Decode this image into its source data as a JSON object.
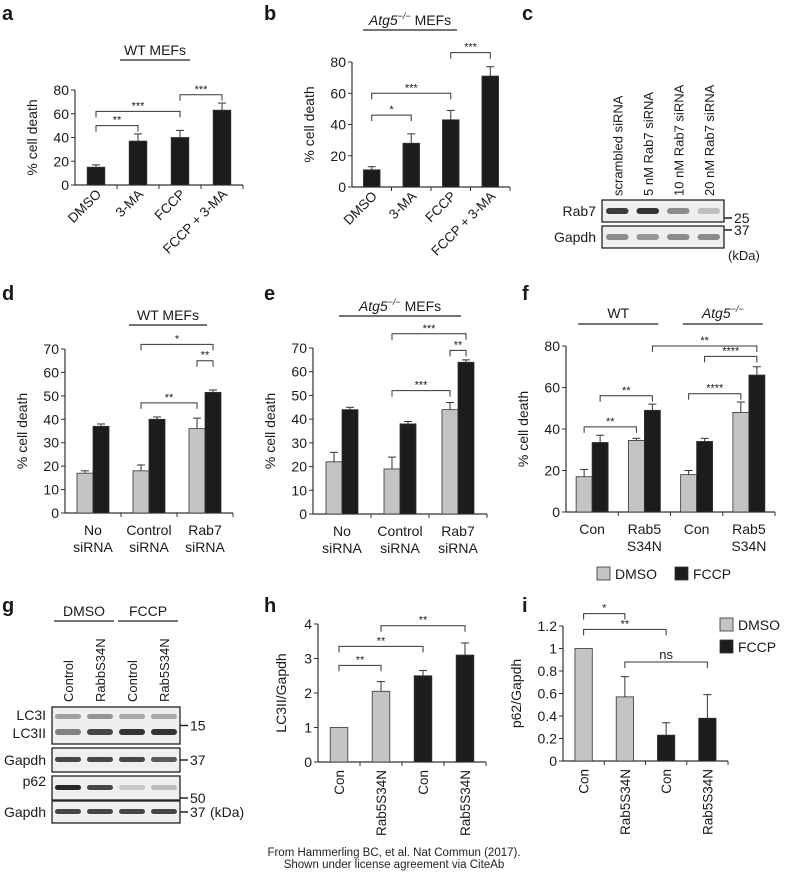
{
  "colors": {
    "dmso": "#c4c4c4",
    "fccp": "#1c1c1c",
    "axis": "#333333"
  },
  "legend": {
    "dmso": "DMSO",
    "fccp": "FCCP"
  },
  "credit": {
    "line1": "From Hammerling BC, et al. Nat Commun (2017).",
    "line2": "Shown under license agreement via CiteAb"
  },
  "blot_c": {
    "panel": "c",
    "lanes": [
      "scrambled siRNA",
      "5 nM Rab7 siRNA",
      "10 nM Rab7 siRNA",
      "20 nM Rab7 siRNA"
    ],
    "rows": [
      {
        "label": "Rab7",
        "marker": "25",
        "intensity": [
          0.85,
          0.9,
          0.45,
          0.2
        ]
      },
      {
        "label": "Gapdh",
        "marker": "37",
        "intensity": [
          0.45,
          0.4,
          0.45,
          0.45
        ]
      }
    ],
    "unit": "(kDa)"
  },
  "blot_g": {
    "panel": "g",
    "groups": [
      "DMSO",
      "FCCP"
    ],
    "lanes": [
      "Control",
      "RabbS34N",
      "Control",
      "Rab5S34N"
    ],
    "rows": [
      {
        "label": "LC3I",
        "label2": "LC3II",
        "marker": "15",
        "intensity": [
          0.35,
          0.4,
          0.3,
          0.3
        ],
        "intensity2": [
          0.5,
          0.8,
          0.9,
          0.9
        ]
      },
      {
        "label": "Gapdh",
        "marker": "37",
        "intensity": [
          0.8,
          0.8,
          0.8,
          0.7
        ]
      },
      {
        "label": "p62",
        "marker": "50",
        "intensity": [
          0.95,
          0.8,
          0.15,
          0.2
        ]
      },
      {
        "label": "Gapdh",
        "marker": "37",
        "unit": "(kDa)",
        "intensity": [
          0.8,
          0.8,
          0.8,
          0.8
        ]
      }
    ]
  },
  "chart_data": [
    {
      "panel": "a",
      "type": "bar",
      "title": "WT MEFs",
      "ylabel": "% cell death",
      "ylim": [
        0,
        80
      ],
      "yticks": [
        "0",
        "20",
        "40",
        "60",
        "80"
      ],
      "categories": [
        "DMSO",
        "3-MA",
        "FCCP",
        "FCCP + 3-MA"
      ],
      "series": [
        {
          "name": "",
          "values": [
            15,
            37,
            40,
            63
          ],
          "errors": [
            2,
            6,
            6,
            6
          ]
        }
      ],
      "annotations": [
        {
          "from": 0,
          "to": 1,
          "label": "**",
          "level": 50
        },
        {
          "from": 0,
          "to": 2,
          "label": "***",
          "level": 62
        },
        {
          "from": 2,
          "to": 3,
          "label": "***",
          "level": 76
        }
      ]
    },
    {
      "panel": "b",
      "type": "bar",
      "title": "Atg5",
      "title_sup": "−/−",
      "title_rest": " MEFs",
      "ylabel": "% cell death",
      "ylim": [
        0,
        80
      ],
      "yticks": [
        "0",
        "20",
        "40",
        "60",
        "80"
      ],
      "categories": [
        "DMSO",
        "3-MA",
        "FCCP",
        "FCCP + 3-MA"
      ],
      "series": [
        {
          "name": "",
          "values": [
            11,
            28,
            43,
            71
          ],
          "errors": [
            2,
            6,
            6,
            6
          ]
        }
      ],
      "annotations": [
        {
          "from": 0,
          "to": 1,
          "label": "*",
          "level": 46
        },
        {
          "from": 0,
          "to": 2,
          "label": "***",
          "level": 60
        },
        {
          "from": 2,
          "to": 3,
          "label": "***",
          "level": 86
        }
      ]
    },
    {
      "panel": "d",
      "type": "bar",
      "title": "WT MEFs",
      "ylabel": "% cell death",
      "ylim": [
        0,
        70
      ],
      "yticks": [
        "0",
        "10",
        "20",
        "30",
        "40",
        "50",
        "60",
        "70"
      ],
      "categories": [
        "No\nsiRNA",
        "Control\nsiRNA",
        "Rab7\nsiRNA"
      ],
      "series": [
        {
          "name": "DMSO",
          "values": [
            17,
            18,
            36
          ],
          "errors": [
            1,
            2.5,
            4.5
          ]
        },
        {
          "name": "FCCP",
          "values": [
            37,
            40,
            51.5
          ],
          "errors": [
            1,
            1,
            1
          ]
        }
      ],
      "annotations": [
        {
          "from": [
            1,
            0
          ],
          "to": [
            2,
            0
          ],
          "label": "**",
          "level": 47
        },
        {
          "from": [
            2,
            0
          ],
          "to": [
            2,
            1
          ],
          "label": "**",
          "level": 65
        },
        {
          "from": [
            1,
            0
          ],
          "to": [
            2,
            1
          ],
          "label": "*",
          "level": 72
        }
      ]
    },
    {
      "panel": "e",
      "type": "bar",
      "title": "Atg5",
      "title_sup": "−/−",
      "title_rest": " MEFs",
      "ylabel": "% cell death",
      "ylim": [
        0,
        70
      ],
      "yticks": [
        "0",
        "10",
        "20",
        "30",
        "40",
        "50",
        "60",
        "70"
      ],
      "categories": [
        "No\nsiRNA",
        "Control\nsiRNA",
        "Rab7\nsiRNA"
      ],
      "series": [
        {
          "name": "DMSO",
          "values": [
            22,
            19,
            44
          ],
          "errors": [
            4,
            5,
            3
          ]
        },
        {
          "name": "FCCP",
          "values": [
            44,
            38,
            64
          ],
          "errors": [
            1,
            1,
            1
          ]
        }
      ],
      "annotations": [
        {
          "from": [
            1,
            0
          ],
          "to": [
            2,
            0
          ],
          "label": "***",
          "level": 52
        },
        {
          "from": [
            2,
            0
          ],
          "to": [
            2,
            1
          ],
          "label": "**",
          "level": 69
        },
        {
          "from": [
            1,
            0
          ],
          "to": [
            2,
            1
          ],
          "label": "***",
          "level": 76
        }
      ]
    },
    {
      "panel": "f",
      "type": "bar",
      "group_titles": [
        "WT",
        "Atg5"
      ],
      "group_title_sup": "−/−",
      "ylabel": "% cell death",
      "ylim": [
        0,
        80
      ],
      "yticks": [
        "0",
        "20",
        "40",
        "60",
        "80"
      ],
      "categories": [
        "Con",
        "Rab5\nS34N",
        "Con",
        "Rab5\nS34N"
      ],
      "series": [
        {
          "name": "DMSO",
          "values": [
            17,
            34.5,
            18,
            48
          ],
          "errors": [
            3.5,
            1,
            2,
            5
          ]
        },
        {
          "name": "FCCP",
          "values": [
            33.5,
            49,
            34,
            66
          ],
          "errors": [
            3.5,
            3,
            1.5,
            4
          ]
        }
      ],
      "annotations": [
        {
          "from": [
            0,
            0
          ],
          "to": [
            1,
            0
          ],
          "label": "**",
          "level": 41
        },
        {
          "from": [
            0,
            1
          ],
          "to": [
            1,
            1
          ],
          "label": "**",
          "level": 56
        },
        {
          "from": [
            2,
            0
          ],
          "to": [
            3,
            0
          ],
          "label": "****",
          "level": 57
        },
        {
          "from": [
            2,
            1
          ],
          "to": [
            3,
            1
          ],
          "label": "****",
          "level": 75
        },
        {
          "from": [
            1,
            1
          ],
          "to": [
            3,
            1
          ],
          "label": "**",
          "level": 80
        }
      ]
    },
    {
      "panel": "h",
      "type": "bar",
      "ylabel": "LC3II/Gapdh",
      "ylim": [
        0,
        4
      ],
      "yticks": [
        "0",
        "1",
        "2",
        "3",
        "4"
      ],
      "categories": [
        "Con",
        "Rab5S34N",
        "Con",
        "Rab5S34N"
      ],
      "series": [
        {
          "name": "",
          "values": [
            1,
            2.05,
            2.5,
            3.1
          ],
          "errors": [
            0,
            0.28,
            0.15,
            0.35
          ],
          "colors": [
            "dmso",
            "dmso",
            "fccp",
            "fccp"
          ]
        }
      ],
      "annotations": [
        {
          "from": 0,
          "to": 1,
          "label": "**",
          "level": 2.8
        },
        {
          "from": 0,
          "to": 2,
          "label": "**",
          "level": 3.35
        },
        {
          "from": 1,
          "to": 3,
          "label": "**",
          "level": 3.95
        }
      ]
    },
    {
      "panel": "i",
      "type": "bar",
      "ylabel": "p62/Gapdh",
      "ylim": [
        0,
        1.2
      ],
      "yticks": [
        "0",
        "0.2",
        "0.4",
        "0.6",
        "0.8",
        "1",
        "1.2"
      ],
      "categories": [
        "Con",
        "Rab5S34N",
        "Con",
        "Rab5S34N"
      ],
      "series": [
        {
          "name": "",
          "values": [
            1,
            0.57,
            0.23,
            0.38
          ],
          "errors": [
            0,
            0.18,
            0.11,
            0.21
          ],
          "colors": [
            "dmso",
            "dmso",
            "fccp",
            "fccp"
          ]
        }
      ],
      "annotations": [
        {
          "from": 0,
          "to": 1,
          "label": "*",
          "level": 1.31
        },
        {
          "from": 0,
          "to": 2,
          "label": "**",
          "level": 1.17
        },
        {
          "from": 1,
          "to": 3,
          "label": "ns",
          "level": 0.88
        }
      ]
    }
  ]
}
